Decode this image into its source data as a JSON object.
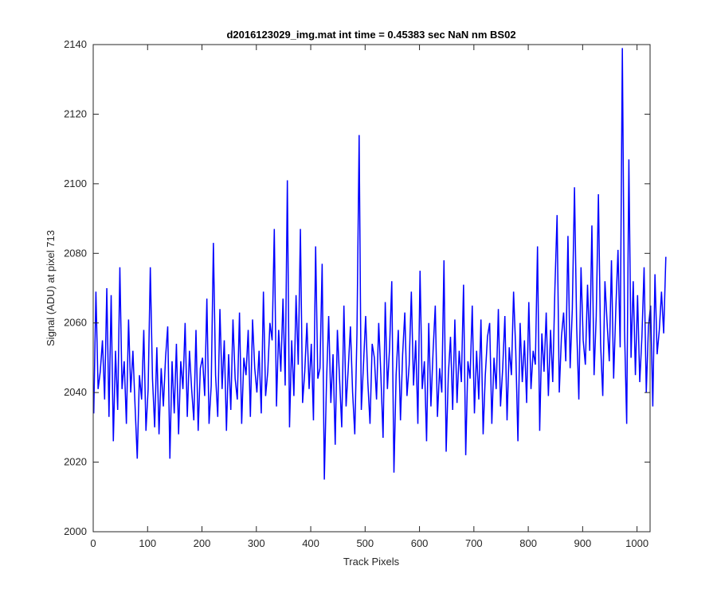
{
  "chart_data": {
    "type": "line",
    "title": "d2016123029_img.mat int time = 0.45383 sec  NaN nm BS02",
    "xlabel": "Track Pixels",
    "ylabel": "Signal (ADU) at pixel 713",
    "xlim": [
      0,
      1024
    ],
    "ylim": [
      2000,
      2140
    ],
    "xticks": [
      "0",
      "100",
      "200",
      "300",
      "400",
      "500",
      "600",
      "700",
      "800",
      "900",
      "1000"
    ],
    "yticks": [
      "2000",
      "2020",
      "2040",
      "2060",
      "2080",
      "2100",
      "2120",
      "2140"
    ],
    "grid": false,
    "line_color": "#0000ff",
    "series": [
      {
        "x_start": 1,
        "x_step": 4,
        "values": [
          2034,
          2069,
          2041,
          2046,
          2055,
          2038,
          2070,
          2033,
          2068,
          2026,
          2052,
          2035,
          2076,
          2041,
          2049,
          2031,
          2061,
          2040,
          2052,
          2036,
          2021,
          2045,
          2038,
          2058,
          2029,
          2041,
          2076,
          2044,
          2030,
          2053,
          2028,
          2047,
          2036,
          2050,
          2059,
          2021,
          2049,
          2034,
          2054,
          2028,
          2049,
          2041,
          2060,
          2033,
          2052,
          2041,
          2032,
          2058,
          2029,
          2047,
          2050,
          2039,
          2067,
          2031,
          2042,
          2083,
          2045,
          2033,
          2064,
          2041,
          2055,
          2029,
          2051,
          2035,
          2061,
          2044,
          2038,
          2063,
          2031,
          2050,
          2045,
          2058,
          2033,
          2061,
          2047,
          2040,
          2052,
          2034,
          2069,
          2039,
          2046,
          2060,
          2055,
          2087,
          2036,
          2058,
          2046,
          2067,
          2042,
          2101,
          2030,
          2055,
          2039,
          2068,
          2048,
          2087,
          2037,
          2046,
          2060,
          2041,
          2054,
          2032,
          2082,
          2044,
          2047,
          2077,
          2015,
          2043,
          2062,
          2037,
          2051,
          2025,
          2058,
          2044,
          2030,
          2065,
          2036,
          2047,
          2059,
          2040,
          2028,
          2057,
          2114,
          2035,
          2048,
          2062,
          2043,
          2031,
          2054,
          2050,
          2038,
          2060,
          2045,
          2027,
          2066,
          2041,
          2053,
          2072,
          2017,
          2045,
          2058,
          2032,
          2051,
          2063,
          2039,
          2048,
          2069,
          2042,
          2055,
          2031,
          2075,
          2041,
          2049,
          2026,
          2060,
          2036,
          2052,
          2065,
          2033,
          2047,
          2040,
          2078,
          2023,
          2045,
          2056,
          2035,
          2061,
          2037,
          2052,
          2043,
          2071,
          2022,
          2049,
          2044,
          2065,
          2034,
          2052,
          2038,
          2061,
          2028,
          2045,
          2056,
          2060,
          2031,
          2050,
          2041,
          2064,
          2036,
          2047,
          2062,
          2032,
          2053,
          2045,
          2069,
          2052,
          2026,
          2060,
          2043,
          2055,
          2037,
          2066,
          2041,
          2052,
          2048,
          2082,
          2029,
          2057,
          2046,
          2063,
          2039,
          2058,
          2043,
          2070,
          2091,
          2040,
          2056,
          2063,
          2049,
          2085,
          2047,
          2064,
          2099,
          2059,
          2038,
          2076,
          2055,
          2048,
          2071,
          2052,
          2088,
          2045,
          2062,
          2097,
          2054,
          2039,
          2072,
          2060,
          2049,
          2078,
          2044,
          2064,
          2081,
          2053,
          2139,
          2058,
          2031,
          2107,
          2050,
          2072,
          2045,
          2068,
          2043,
          2056,
          2076,
          2040,
          2059,
          2065,
          2036,
          2074,
          2051,
          2058,
          2069,
          2057,
          2079
        ]
      }
    ]
  }
}
